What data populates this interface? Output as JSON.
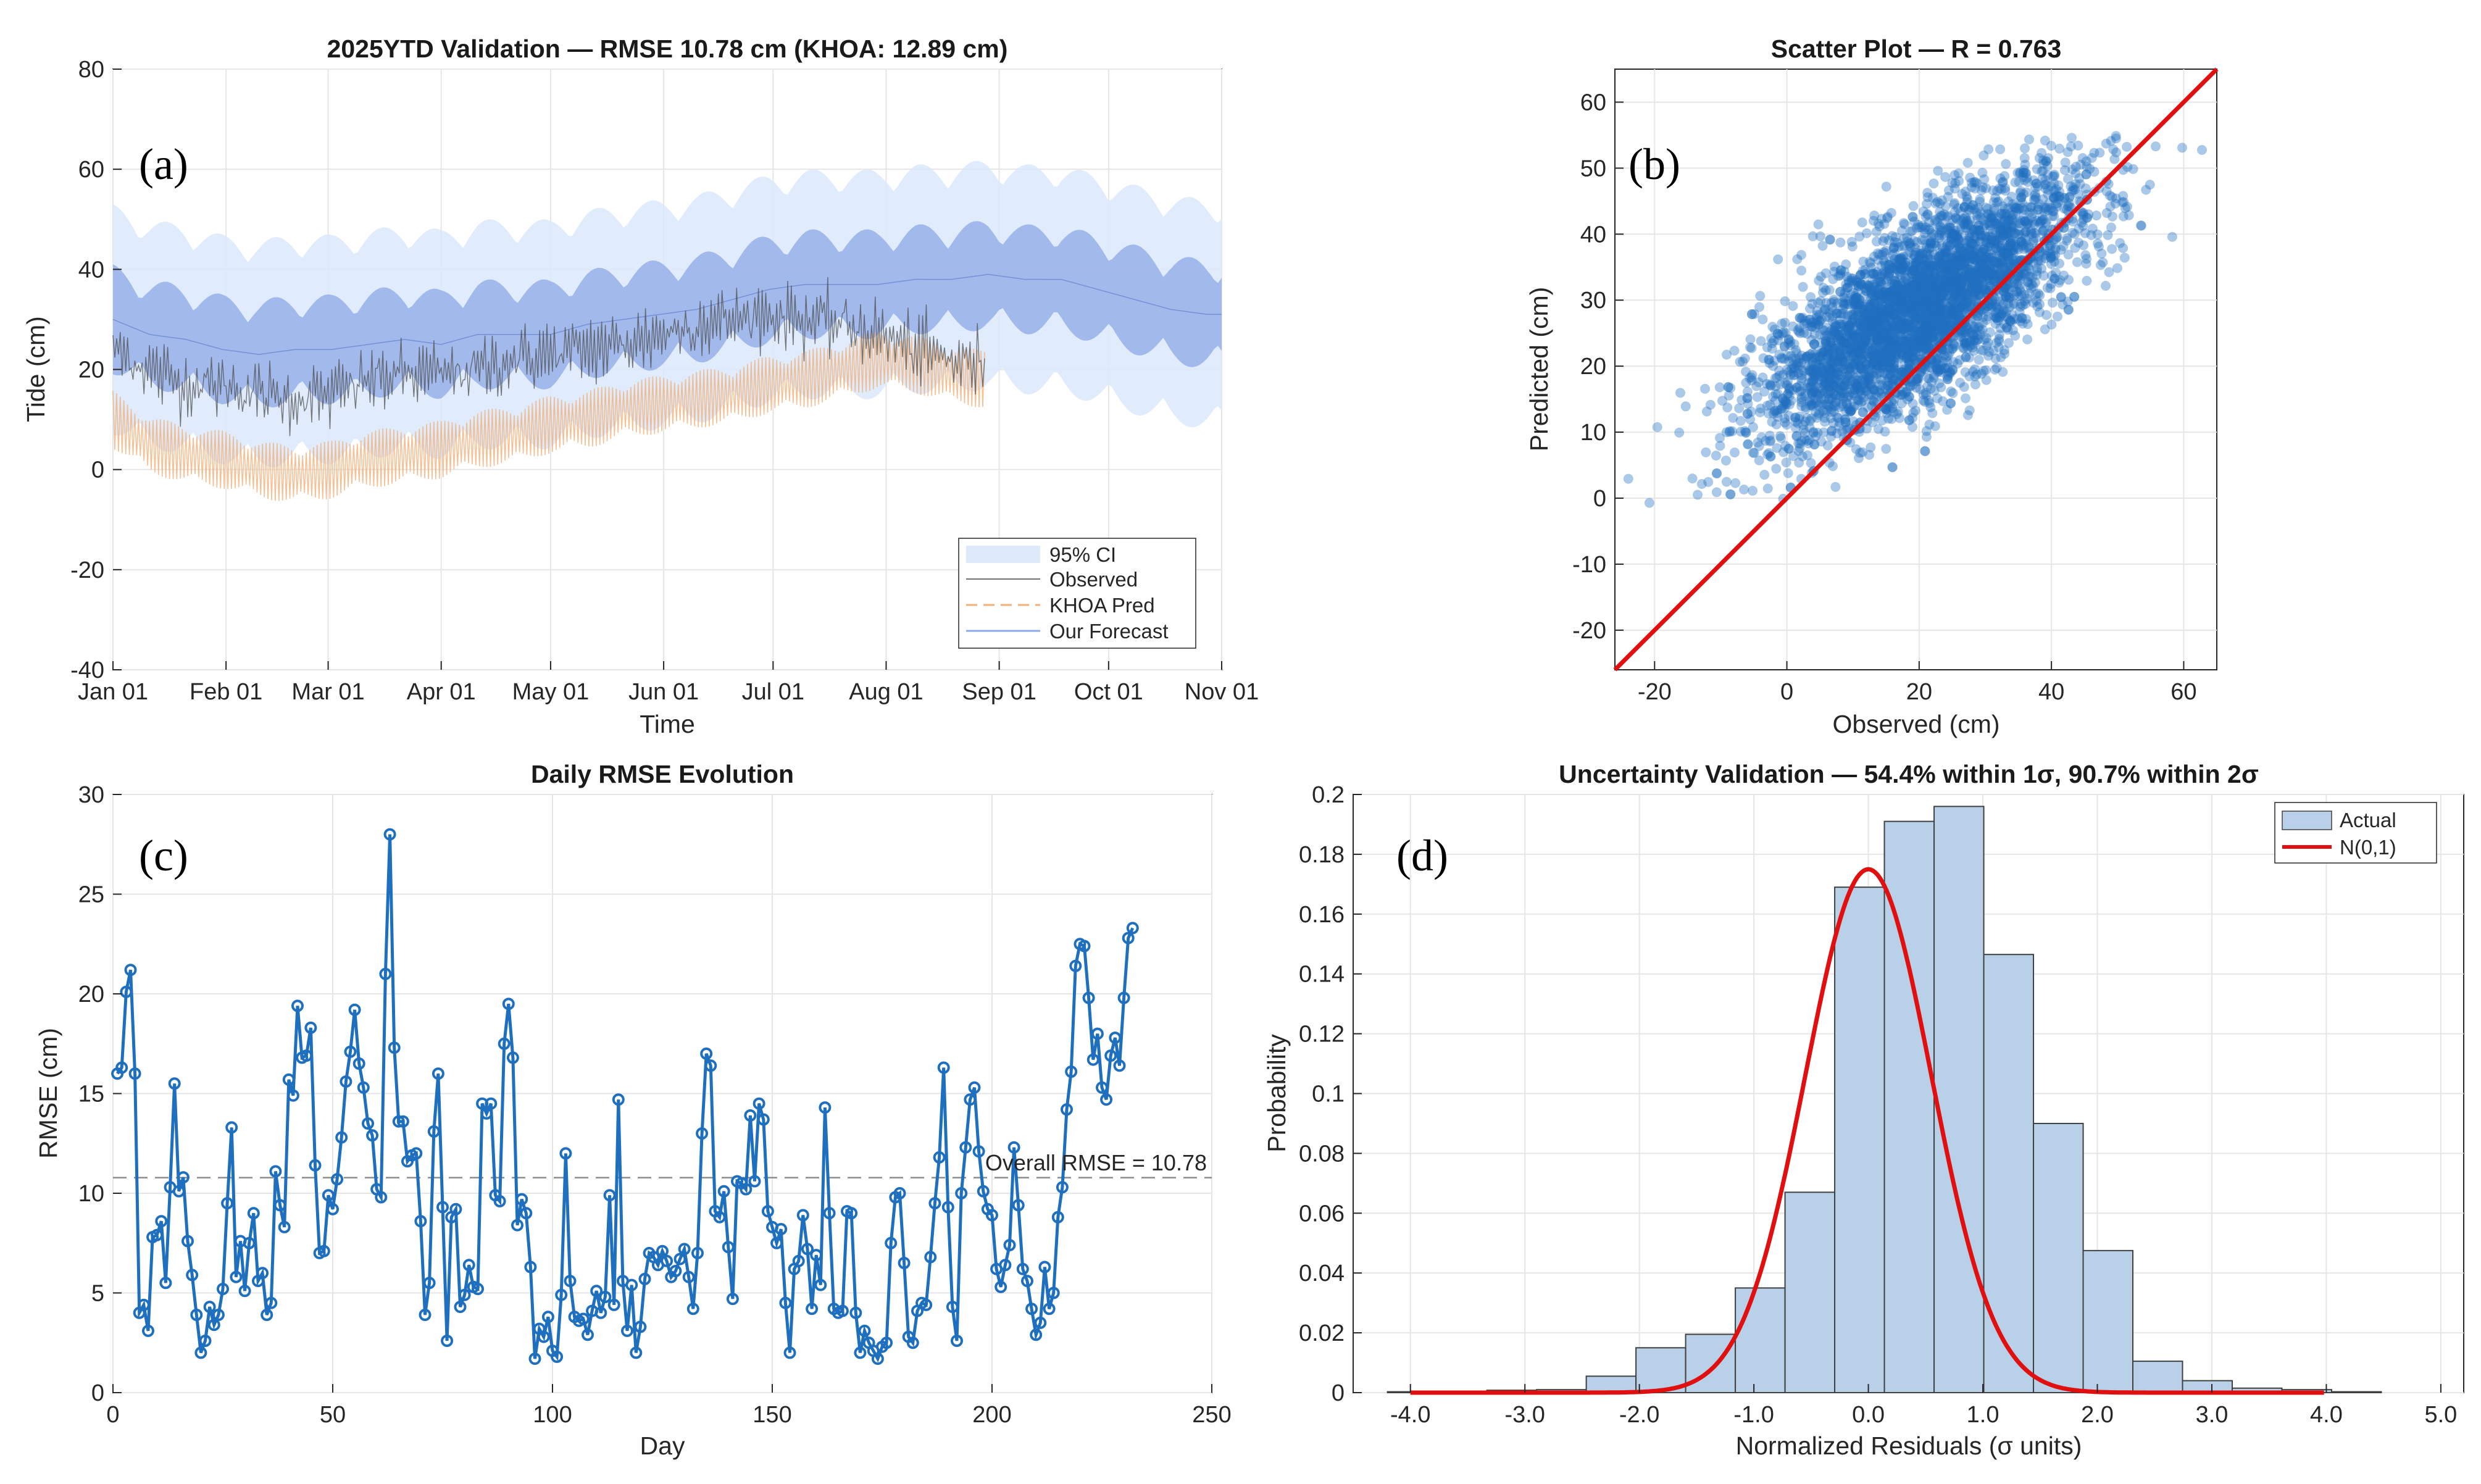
{
  "chart_data": [
    {
      "id": "a",
      "type": "line",
      "panel_label": "(a)",
      "title": "2025YTD Validation — RMSE 10.78 cm (KHOA: 12.89 cm)",
      "xlabel": "Time",
      "ylabel": "Tide (cm)",
      "x_ticks": [
        "Jan 01",
        "Feb 01",
        "Mar 01",
        "Apr 01",
        "May 01",
        "Jun 01",
        "Jul 01",
        "Aug 01",
        "Sep 01",
        "Oct 01",
        "Nov 01"
      ],
      "x_tick_days": [
        0,
        31,
        59,
        90,
        120,
        151,
        181,
        212,
        243,
        273,
        304
      ],
      "xlim": [
        0,
        304
      ],
      "ylim": [
        -40,
        80
      ],
      "y_ticks": [
        -40,
        -20,
        0,
        20,
        40,
        60,
        80
      ],
      "legend": [
        "95% CI",
        "Observed",
        "KHOA Pred",
        "Our Forecast"
      ],
      "legend_position": "bottom-right",
      "series": [
        {
          "name": "Our Forecast",
          "mean_points": [
            [
              0,
              30
            ],
            [
              10,
              27
            ],
            [
              20,
              26
            ],
            [
              30,
              24
            ],
            [
              40,
              23
            ],
            [
              50,
              24
            ],
            [
              60,
              24
            ],
            [
              70,
              25
            ],
            [
              80,
              26
            ],
            [
              90,
              25
            ],
            [
              100,
              27
            ],
            [
              110,
              27
            ],
            [
              120,
              27
            ],
            [
              130,
              29
            ],
            [
              140,
              30
            ],
            [
              150,
              31
            ],
            [
              160,
              32
            ],
            [
              170,
              34
            ],
            [
              180,
              36
            ],
            [
              190,
              37
            ],
            [
              200,
              37
            ],
            [
              210,
              37
            ],
            [
              220,
              38
            ],
            [
              230,
              38
            ],
            [
              240,
              39
            ],
            [
              250,
              38
            ],
            [
              260,
              38
            ],
            [
              270,
              36
            ],
            [
              280,
              34
            ],
            [
              290,
              32
            ],
            [
              300,
              31
            ]
          ],
          "amplitude": 11,
          "ci_halfwidth": 20
        },
        {
          "name": "Observed",
          "mean_points": [
            [
              0,
              24
            ],
            [
              10,
              20
            ],
            [
              20,
              17
            ],
            [
              30,
              17
            ],
            [
              40,
              15
            ],
            [
              50,
              14
            ],
            [
              60,
              15
            ],
            [
              70,
              18
            ],
            [
              80,
              19
            ],
            [
              90,
              19
            ],
            [
              100,
              20
            ],
            [
              110,
              22
            ],
            [
              120,
              23
            ],
            [
              130,
              24
            ],
            [
              140,
              25
            ],
            [
              150,
              27
            ],
            [
              160,
              29
            ],
            [
              170,
              30
            ],
            [
              180,
              31
            ],
            [
              190,
              30
            ],
            [
              200,
              29
            ],
            [
              210,
              27
            ],
            [
              220,
              24
            ],
            [
              230,
              22
            ],
            [
              239,
              21
            ]
          ],
          "amplitude": 12
        },
        {
          "name": "KHOA Pred",
          "mean_points": [
            [
              0,
              10
            ],
            [
              10,
              5
            ],
            [
              20,
              3
            ],
            [
              30,
              2
            ],
            [
              40,
              0
            ],
            [
              50,
              -1
            ],
            [
              60,
              0
            ],
            [
              70,
              2
            ],
            [
              80,
              3
            ],
            [
              90,
              4
            ],
            [
              100,
              6
            ],
            [
              110,
              7
            ],
            [
              120,
              9
            ],
            [
              130,
              10
            ],
            [
              140,
              12
            ],
            [
              150,
              13
            ],
            [
              160,
              14
            ],
            [
              170,
              15
            ],
            [
              180,
              17
            ],
            [
              190,
              18
            ],
            [
              200,
              20
            ],
            [
              210,
              22
            ],
            [
              220,
              21
            ],
            [
              230,
              19
            ],
            [
              239,
              18
            ]
          ],
          "amplitude": 9
        }
      ]
    },
    {
      "id": "b",
      "type": "scatter",
      "panel_label": "(b)",
      "title": "Scatter Plot — R = 0.763",
      "xlabel": "Observed (cm)",
      "ylabel": "Predicted (cm)",
      "xlim": [
        -26,
        65
      ],
      "ylim": [
        -26,
        65
      ],
      "x_ticks": [
        -20,
        0,
        20,
        40,
        60
      ],
      "y_ticks": [
        -20,
        -10,
        0,
        10,
        20,
        30,
        40,
        50,
        60
      ],
      "identity_line": [
        [
          -26,
          -26
        ],
        [
          65,
          65
        ]
      ],
      "point_cloud": {
        "count": 4000,
        "x_mean": 20,
        "x_sd": 12,
        "slope": 0.58,
        "intercept": 17,
        "residual_sd": 6.5,
        "x_range": [
          -26,
          64
        ],
        "y_range": [
          -1,
          55
        ]
      }
    },
    {
      "id": "c",
      "type": "line",
      "panel_label": "(c)",
      "title": "Daily RMSE Evolution",
      "xlabel": "Day",
      "ylabel": "RMSE (cm)",
      "xlim": [
        0,
        250
      ],
      "ylim": [
        0,
        30
      ],
      "x_ticks": [
        0,
        50,
        100,
        150,
        200,
        250
      ],
      "y_ticks": [
        0,
        5,
        10,
        15,
        20,
        25,
        30
      ],
      "reference_line": {
        "value": 10.78,
        "label": "Overall RMSE = 10.78"
      },
      "values": [
        16.0,
        16.3,
        20.1,
        21.2,
        16.0,
        4.0,
        4.4,
        3.1,
        7.8,
        7.9,
        8.6,
        5.5,
        10.3,
        15.5,
        10.1,
        10.8,
        7.6,
        5.9,
        3.9,
        2.0,
        2.6,
        4.3,
        3.4,
        3.9,
        5.2,
        9.5,
        13.3,
        5.8,
        7.6,
        5.1,
        7.5,
        9.0,
        5.6,
        6.0,
        3.9,
        4.5,
        11.1,
        9.4,
        8.3,
        15.7,
        14.9,
        19.4,
        16.8,
        16.9,
        18.3,
        11.4,
        7.0,
        7.1,
        9.9,
        9.2,
        10.7,
        12.8,
        15.6,
        17.1,
        19.2,
        16.5,
        15.3,
        13.5,
        12.9,
        10.2,
        9.8,
        21.0,
        28.0,
        17.3,
        13.6,
        13.6,
        11.6,
        11.9,
        12.0,
        8.6,
        3.9,
        5.5,
        13.1,
        16.0,
        9.3,
        2.6,
        8.8,
        9.2,
        4.3,
        4.9,
        6.4,
        5.3,
        5.2,
        14.5,
        14.0,
        14.5,
        9.9,
        9.6,
        17.5,
        19.5,
        16.8,
        8.4,
        9.7,
        9.0,
        6.3,
        1.7,
        3.2,
        2.8,
        3.8,
        2.1,
        1.8,
        4.9,
        12.0,
        5.6,
        3.8,
        3.6,
        3.7,
        2.9,
        4.1,
        5.1,
        4.0,
        4.8,
        9.9,
        4.4,
        14.7,
        5.6,
        3.1,
        5.4,
        2.0,
        3.3,
        5.7,
        7.0,
        6.8,
        6.4,
        7.1,
        6.6,
        5.8,
        6.1,
        6.7,
        7.2,
        5.8,
        4.2,
        7.0,
        13.0,
        17.0,
        16.4,
        9.1,
        8.8,
        10.1,
        7.3,
        4.7,
        10.6,
        10.5,
        10.2,
        13.9,
        10.6,
        14.5,
        13.7,
        9.1,
        8.3,
        7.5,
        8.2,
        4.5,
        2.0,
        6.2,
        6.6,
        8.9,
        7.2,
        4.2,
        6.9,
        5.4,
        14.3,
        9.0,
        4.2,
        4.0,
        4.1,
        9.1,
        9.0,
        4.0,
        2.0,
        3.1,
        2.5,
        2.1,
        1.7,
        2.3,
        2.5,
        7.5,
        9.8,
        10.0,
        6.5,
        2.8,
        2.5,
        4.1,
        4.5,
        4.4,
        6.8,
        9.5,
        11.8,
        16.3,
        9.3,
        4.3,
        2.6,
        10.0,
        12.3,
        14.7,
        15.3,
        12.1,
        10.1,
        9.2,
        8.9,
        6.2,
        5.3,
        6.4,
        7.4,
        12.3,
        9.4,
        6.2,
        5.6,
        4.2,
        2.9,
        3.5,
        6.3,
        4.2,
        5.0,
        8.8,
        10.3,
        14.2,
        16.1,
        21.4,
        22.5,
        22.4,
        19.8,
        16.7,
        18.0,
        15.3,
        14.7,
        16.9,
        17.8,
        16.4,
        19.8,
        22.8,
        23.3
      ]
    },
    {
      "id": "d",
      "type": "bar",
      "panel_label": "(d)",
      "title": "Uncertainty  Validation  —  54.4%  within  1σ,  90.7%  within  2σ",
      "xlabel": "Normalized  Residuals  (σ  units)",
      "ylabel": "Probability",
      "xlim": [
        -4.5,
        5.2
      ],
      "ylim": [
        0,
        0.2
      ],
      "x_ticks": [
        -4.0,
        -3.0,
        -2.0,
        -1.0,
        0.0,
        1.0,
        2.0,
        3.0,
        4.0,
        5.0
      ],
      "x_tick_labels": [
        "-4.0",
        "-3.0",
        "-2.0",
        "-1.0",
        "0.0",
        "1.0",
        "2.0",
        "3.0",
        "4.0",
        "5.0"
      ],
      "y_ticks": [
        0,
        0.02,
        0.04,
        0.06,
        0.08,
        0.1,
        0.12,
        0.14,
        0.16,
        0.18,
        0.2
      ],
      "y_tick_labels": [
        "0",
        "0.02",
        "0.04",
        "0.06",
        "0.08",
        "0.1",
        "0.12",
        "0.14",
        "0.16",
        "0.18",
        "0.2"
      ],
      "legend": [
        "Actual",
        "N(0,1)"
      ],
      "legend_position": "top-right",
      "bins": {
        "start": -4.2,
        "width": 0.434,
        "values": [
          0.0003,
          0.0005,
          0.0008,
          0.001,
          0.0055,
          0.015,
          0.0195,
          0.035,
          0.067,
          0.169,
          0.191,
          0.196,
          0.1465,
          0.09,
          0.0475,
          0.0105,
          0.004,
          0.0015,
          0.001,
          0.0003
        ]
      },
      "curve": {
        "name": "N(0,1)",
        "peak": 0.175,
        "mean": 0,
        "sd": 0.55
      }
    }
  ]
}
